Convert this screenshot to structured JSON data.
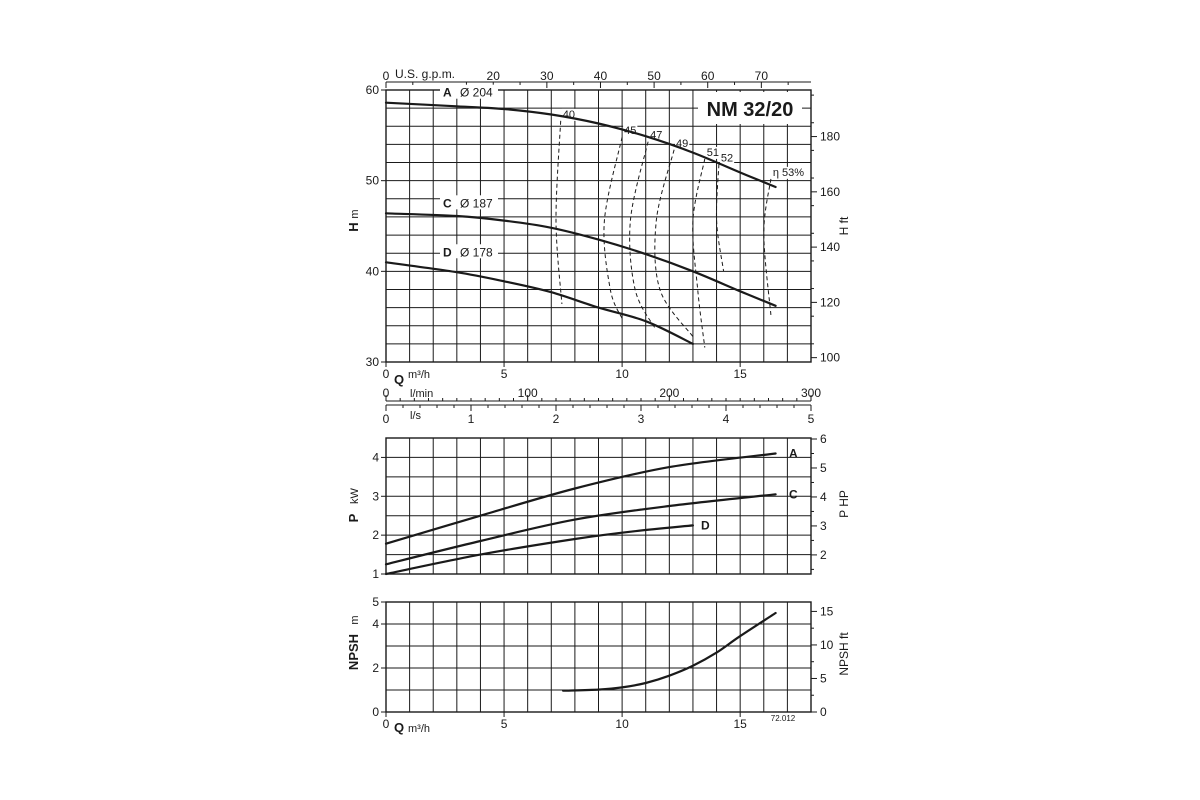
{
  "chart_data": [
    {
      "type": "line",
      "title": "NM 32/20",
      "xlabel": "Q",
      "x_unit": "m³/h",
      "ylabel": "H",
      "y_unit": "m",
      "y2_label": "H ft",
      "xlim": [
        0,
        18
      ],
      "ylim": [
        30,
        60
      ],
      "y_ticks": [
        30,
        40,
        50,
        60
      ],
      "x_ticks": [
        0,
        5,
        10,
        15
      ],
      "y2_ticks": [
        100,
        120,
        140,
        160,
        180
      ],
      "top_axis": {
        "label": "U.S. g.p.m.",
        "ticks": [
          0,
          20,
          30,
          40,
          50,
          60,
          70
        ]
      },
      "flow_axes": [
        {
          "label": "l/min",
          "ticks": [
            0,
            100,
            200,
            300
          ]
        },
        {
          "label": "l/s",
          "ticks": [
            0,
            1,
            2,
            3,
            4,
            5
          ]
        }
      ],
      "series": [
        {
          "name": "A",
          "diameter": "Ø 204",
          "x": [
            0,
            3,
            5,
            7,
            9,
            11,
            13,
            15,
            16.5
          ],
          "y": [
            58.6,
            58.2,
            57.9,
            57.3,
            56.3,
            54.9,
            53.1,
            50.9,
            49.3
          ]
        },
        {
          "name": "C",
          "diameter": "Ø 187",
          "x": [
            0,
            3,
            5,
            7,
            9,
            11,
            13,
            15,
            16.5
          ],
          "y": [
            46.4,
            46.1,
            45.6,
            44.8,
            43.5,
            41.9,
            40.0,
            37.8,
            36.2
          ]
        },
        {
          "name": "D",
          "diameter": "Ø 178",
          "x": [
            0,
            3,
            5,
            7,
            9,
            11,
            13
          ],
          "y": [
            41.0,
            39.9,
            38.9,
            37.7,
            36.0,
            34.5,
            32.0
          ]
        }
      ],
      "efficiency_lines": [
        {
          "label": "40",
          "x": [
            7.4,
            7.2,
            7.45
          ],
          "y": [
            56.6,
            45.6,
            36.4
          ]
        },
        {
          "label": "45",
          "x": [
            10.0,
            9.25,
            9.5,
            10.0
          ],
          "y": [
            54.8,
            45.6,
            38.0,
            34.8
          ]
        },
        {
          "label": "47",
          "x": [
            11.1,
            10.35,
            10.55,
            11.4
          ],
          "y": [
            54.3,
            45.6,
            38.0,
            33.7
          ]
        },
        {
          "label": "49",
          "x": [
            12.2,
            11.45,
            11.6,
            13.0
          ],
          "y": [
            53.4,
            45.6,
            38.0,
            32.8
          ]
        },
        {
          "label": "51",
          "x": [
            13.5,
            13.0,
            13.2,
            13.5
          ],
          "y": [
            52.4,
            45.6,
            38.0,
            31.6
          ]
        },
        {
          "label": "52",
          "x": [
            14.1,
            14.0,
            14.3
          ],
          "y": [
            51.8,
            45.6,
            40.0
          ]
        },
        {
          "label": "η 53%",
          "x": [
            16.3,
            16.0,
            16.3
          ],
          "y": [
            50.2,
            44.2,
            35.2
          ]
        }
      ]
    },
    {
      "type": "line",
      "ylabel": "P",
      "y_unit": "kW",
      "y2_label": "P HP",
      "xlim": [
        0,
        18
      ],
      "ylim": [
        1,
        4.5
      ],
      "y_ticks": [
        1,
        2,
        3,
        4
      ],
      "y2_ticks": [
        2,
        3,
        4,
        5,
        6
      ],
      "series": [
        {
          "name": "A",
          "x": [
            0,
            4,
            8,
            12,
            16.5
          ],
          "y": [
            1.78,
            2.5,
            3.2,
            3.75,
            4.1
          ]
        },
        {
          "name": "C",
          "x": [
            0,
            4,
            8,
            12,
            16.5
          ],
          "y": [
            1.25,
            1.85,
            2.4,
            2.75,
            3.05
          ]
        },
        {
          "name": "D",
          "x": [
            0,
            4,
            8,
            10.5,
            13
          ],
          "y": [
            1.0,
            1.5,
            1.9,
            2.1,
            2.25
          ]
        }
      ]
    },
    {
      "type": "line",
      "xlabel": "Q",
      "x_unit": "m³/h",
      "ylabel": "NPSH",
      "y_unit": "m",
      "y2_label": "NPSH ft",
      "xlim": [
        0,
        18
      ],
      "ylim": [
        0,
        5
      ],
      "y_ticks": [
        0,
        2,
        4,
        5
      ],
      "x_ticks": [
        0,
        5,
        10,
        15
      ],
      "y2_ticks": [
        0,
        5,
        10,
        15
      ],
      "note": "72.012",
      "series": [
        {
          "name": "NPSH",
          "x": [
            7.5,
            9,
            10,
            11,
            12,
            13,
            14,
            15,
            16.5
          ],
          "y": [
            0.97,
            1.02,
            1.12,
            1.32,
            1.65,
            2.1,
            2.7,
            3.45,
            4.5
          ]
        }
      ]
    }
  ]
}
